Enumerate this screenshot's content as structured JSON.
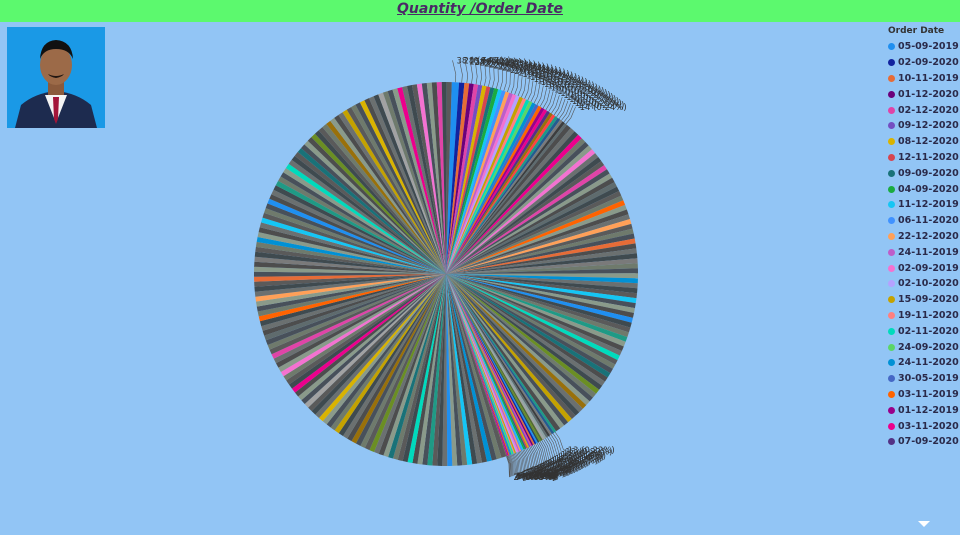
{
  "header": {
    "title": "Quantity /Order Date",
    "accent": "#5cf96e",
    "background": "#92c5f5"
  },
  "photo": {
    "icon": "person-portrait-icon"
  },
  "legend": {
    "title": "Order Date",
    "items": [
      {
        "label": "05-09-2019",
        "color": "#1f8ff0"
      },
      {
        "label": "02-09-2020",
        "color": "#12239e"
      },
      {
        "label": "10-11-2019",
        "color": "#e66c37"
      },
      {
        "label": "01-12-2020",
        "color": "#6b007b"
      },
      {
        "label": "02-12-2020",
        "color": "#e044a7"
      },
      {
        "label": "09-12-2020",
        "color": "#744ec2"
      },
      {
        "label": "08-12-2020",
        "color": "#d9b300"
      },
      {
        "label": "12-11-2020",
        "color": "#d64550"
      },
      {
        "label": "09-09-2020",
        "color": "#197278"
      },
      {
        "label": "04-09-2020",
        "color": "#1aab40"
      },
      {
        "label": "11-12-2019",
        "color": "#15c6f4"
      },
      {
        "label": "06-11-2020",
        "color": "#4092ff"
      },
      {
        "label": "22-12-2020",
        "color": "#ffa058"
      },
      {
        "label": "24-11-2019",
        "color": "#be5dc9"
      },
      {
        "label": "02-09-2019",
        "color": "#f472d0"
      },
      {
        "label": "02-10-2020",
        "color": "#b5a1ff"
      },
      {
        "label": "15-09-2020",
        "color": "#c4a200"
      },
      {
        "label": "19-11-2020",
        "color": "#ff8080"
      },
      {
        "label": "02-11-2020",
        "color": "#00dbbc"
      },
      {
        "label": "24-09-2020",
        "color": "#5bd667"
      },
      {
        "label": "24-11-2020",
        "color": "#0091d5"
      },
      {
        "label": "30-05-2019",
        "color": "#4668c5"
      },
      {
        "label": "03-11-2019",
        "color": "#ff6300"
      },
      {
        "label": "01-12-2019",
        "color": "#99008a"
      },
      {
        "label": "03-11-2020",
        "color": "#ec008c"
      },
      {
        "label": "07-09-2020",
        "color": "#533285"
      }
    ]
  },
  "chart_data": {
    "type": "pie",
    "title": "Quantity /Order Date",
    "legend_title": "Order Date",
    "legend_position": "right",
    "labeled_slices": [
      {
        "value": 38,
        "percent": "0.64%",
        "label": "38 (0.64%)"
      },
      {
        "value": 28,
        "percent": "0.47%",
        "label": "28 (0.47%)"
      },
      {
        "value": 25,
        "percent": "0.42%",
        "label": "25 (0.42%)"
      },
      {
        "value": 24,
        "percent": "0.41%",
        "label": "24 (0.41%)"
      },
      {
        "value": 23,
        "percent": "0.39%",
        "label": "23 (0.39%)"
      },
      {
        "value": 22,
        "percent": "0.37%",
        "label": "22 (0.37%)"
      },
      {
        "value": 22,
        "percent": "0.37%",
        "label": "22 (0.37%)"
      },
      {
        "value": 21,
        "percent": "0.36%",
        "label": "21 (0.36%)"
      },
      {
        "value": 21,
        "percent": "0.36%",
        "label": "21 (0.36%)"
      },
      {
        "value": 21,
        "percent": "0.36%",
        "label": "21 (0.36%)"
      },
      {
        "value": 20,
        "percent": "0.34%",
        "label": "20 (0.34%)"
      },
      {
        "value": 20,
        "percent": "0.34%",
        "label": "20 (0.34%)"
      },
      {
        "value": 20,
        "percent": "0.34%",
        "label": "20 (0.34%)"
      },
      {
        "value": 20,
        "percent": "0.34%",
        "label": "20 (0.34%)"
      },
      {
        "value": 19,
        "percent": "0.32%",
        "label": "19 (0.32%)"
      },
      {
        "value": 19,
        "percent": "0.32%",
        "label": "19 (0.32%)"
      },
      {
        "value": 19,
        "percent": "0.32%",
        "label": "19 (0.32%)"
      },
      {
        "value": 18,
        "percent": "0.31%",
        "label": "18 (0.31%)"
      },
      {
        "value": 18,
        "percent": "0.31%",
        "label": "18 (0.31%)"
      },
      {
        "value": 18,
        "percent": "0.31%",
        "label": "18 (0.31%)"
      },
      {
        "value": 18,
        "percent": "0.31%",
        "label": "18 (0.31%)"
      },
      {
        "value": 18,
        "percent": "0.31%",
        "label": "18 (0.31%)"
      },
      {
        "value": 18,
        "percent": "0.31%",
        "label": "18 (0.31%)"
      },
      {
        "value": 17,
        "percent": "0.29%",
        "label": "17 (0.29%)"
      },
      {
        "value": 17,
        "percent": "0.29%",
        "label": "17 (0.29%)"
      },
      {
        "value": 17,
        "percent": "0.29%",
        "label": "17 (0.29%)"
      },
      {
        "value": 17,
        "percent": "0.29%",
        "label": "17 (0.29%)"
      },
      {
        "value": 16,
        "percent": "0.27%",
        "label": "16 (0.27%)"
      },
      {
        "value": 16,
        "percent": "0.27%",
        "label": "16 (0.27%)"
      },
      {
        "value": 16,
        "percent": "0.27%",
        "label": "16 (0.27%)"
      },
      {
        "value": 15,
        "percent": "0.25%",
        "label": "15 (0.25%)"
      },
      {
        "value": 15,
        "percent": "0.25%",
        "label": "15 (0.25%)"
      },
      {
        "value": 14,
        "percent": "0.24%",
        "label": "14 (0.24%)"
      },
      {
        "value": 13,
        "percent": "0.22%",
        "label": "13 (0.22%)"
      },
      {
        "value": 13,
        "percent": "0.22%",
        "label": "13 (0.22%)"
      },
      {
        "value": 12,
        "percent": "0.2%",
        "label": "12 (0.2%)"
      },
      {
        "value": 12,
        "percent": "0.2%",
        "label": "12 (0.2%)"
      },
      {
        "value": 11,
        "percent": "0.19%",
        "label": "11 (0.19%)"
      },
      {
        "value": 11,
        "percent": "0.19%",
        "label": "11 (0.19%)"
      },
      {
        "value": 11,
        "percent": "0.19%",
        "label": "11 (0.19%)"
      },
      {
        "value": 10,
        "percent": "0.17%",
        "label": "10 (0.17%)"
      },
      {
        "value": 10,
        "percent": "0.17%",
        "label": "10 (0.17%)"
      },
      {
        "value": 9,
        "percent": "0.15%",
        "label": "9 (0.15%)"
      },
      {
        "value": 9,
        "percent": "0.15%",
        "label": "9 (0.15%)"
      },
      {
        "value": 9,
        "percent": "0.15%",
        "label": "9 (0.15%)"
      },
      {
        "value": 9,
        "percent": "0.15%",
        "label": "9 (0.15%)"
      },
      {
        "value": 8,
        "percent": "0.14%",
        "label": "8 (0.14%)"
      },
      {
        "value": 8,
        "percent": "0.14%",
        "label": "8 (0.14%)"
      },
      {
        "value": 8,
        "percent": "0.14%",
        "label": "8 (0.14%)"
      },
      {
        "value": 8,
        "percent": "0.14%",
        "label": "8 (0.14%)"
      },
      {
        "value": 8,
        "percent": "0.14%",
        "label": "8 (0.14%)"
      },
      {
        "value": 8,
        "percent": "0.14%",
        "label": "8 (0.14%)"
      },
      {
        "value": 8,
        "percent": "0.14%",
        "label": "8 (0.14%)"
      },
      {
        "value": 7,
        "percent": "0.12%",
        "label": "7 (0.12%)"
      },
      {
        "value": 7,
        "percent": "0.12%",
        "label": "7 (0.12%)"
      },
      {
        "value": 7,
        "percent": "0.12%",
        "label": "7 (0.12%)"
      },
      {
        "value": 7,
        "percent": "0.12%",
        "label": "7 (0.12%)"
      },
      {
        "value": 7,
        "percent": "0.12%",
        "label": "7 (0.12%)"
      },
      {
        "value": 7,
        "percent": "0.12%",
        "label": "7 (0.12%)"
      },
      {
        "value": 7,
        "percent": "0.12%",
        "label": "7 (0.12%)"
      },
      {
        "value": 6,
        "percent": "0.1%",
        "label": "6 (0.1%)"
      },
      {
        "value": 6,
        "percent": "0.1%",
        "label": "6 (0.1%)"
      },
      {
        "value": 6,
        "percent": "0.1%",
        "label": "6 (0.1%)"
      },
      {
        "value": 6,
        "percent": "0.1%",
        "label": "6 (0.1%)"
      },
      {
        "value": 5,
        "percent": "0.08%",
        "label": "5 (0.08%)"
      },
      {
        "value": 5,
        "percent": "0.08%",
        "label": "5 (0.08%)"
      },
      {
        "value": 4,
        "percent": "0.07%",
        "label": "4 (0.07%)"
      },
      {
        "value": 4,
        "percent": "0.07%",
        "label": "4 (0.07%)"
      },
      {
        "value": 3,
        "percent": "0.05%",
        "label": "3 (0.05%)"
      },
      {
        "value": 2,
        "percent": "0.03%",
        "label": "2 (0.03%)"
      }
    ],
    "palette": [
      "#1f8ff0",
      "#12239e",
      "#e66c37",
      "#6b007b",
      "#e044a7",
      "#744ec2",
      "#d9b300",
      "#d64550",
      "#197278",
      "#1aab40",
      "#15c6f4",
      "#4092ff",
      "#ffa058",
      "#be5dc9",
      "#f472d0",
      "#b5a1ff",
      "#c4a200",
      "#ff8080",
      "#00dbbc",
      "#5bd667",
      "#0091d5",
      "#4668c5",
      "#ff6300",
      "#99008a",
      "#ec008c",
      "#533285",
      "#99700a",
      "#ff4141",
      "#1f9a85",
      "#255a8f",
      "#7a7a7a",
      "#3d3d3d",
      "#5f6b6d",
      "#8fa3a1",
      "#a2a2a2",
      "#556b2f",
      "#6b8e23",
      "#2f4f4f"
    ],
    "unlabeled_remainder_slices": 205,
    "unlabeled_remainder_color_cycle": [
      "#3f4a4f",
      "#5a5a5a",
      "#6f7a6c",
      "#48505a",
      "#8a9a8a",
      "#4d4d4d",
      "#6b7070"
    ]
  }
}
